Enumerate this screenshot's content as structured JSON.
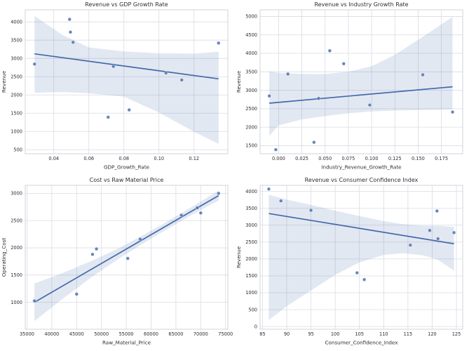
{
  "style": {
    "accent": "#4c72b0",
    "line_color": "#446aab",
    "point_fill": "#4c72b0",
    "point_edge": "#ffffff",
    "band_fill": "#4c72b0",
    "band_opacity": 0.16,
    "grid_color": "#d9dce3",
    "frame_color": "#cfd3da",
    "text_color": "#2e2e2e",
    "background": "#ffffff"
  },
  "chart_data": [
    {
      "type": "scatter",
      "title": "Revenue vs GDP Growth Rate",
      "xlabel": "GDP_Growth_Rate",
      "ylabel": "Revenue",
      "xlim": [
        0.0237,
        0.1393
      ],
      "ylim": [
        390,
        4330
      ],
      "grid": true,
      "legend": "none",
      "xtick_values": [
        0.04,
        0.06,
        0.08,
        0.1,
        0.12
      ],
      "xtick_labels": [
        "0.04",
        "0.06",
        "0.08",
        "0.10",
        "0.12"
      ],
      "ytick_values": [
        500,
        1000,
        1500,
        2000,
        2500,
        3000,
        3500,
        4000
      ],
      "ytick_labels": [
        "500",
        "1000",
        "1500",
        "2000",
        "2500",
        "3000",
        "3500",
        "4000"
      ],
      "points": [
        [
          0.029,
          2845
        ],
        [
          0.049,
          4070
        ],
        [
          0.0495,
          3720
        ],
        [
          0.051,
          3440
        ],
        [
          0.071,
          1390
        ],
        [
          0.074,
          2780
        ],
        [
          0.083,
          1590
        ],
        [
          0.104,
          2600
        ],
        [
          0.113,
          2410
        ],
        [
          0.134,
          3420
        ]
      ],
      "regression_line": [
        [
          0.029,
          3125
        ],
        [
          0.134,
          2440
        ]
      ],
      "ci_band": [
        [
          0.029,
          2060,
          4160
        ],
        [
          0.045,
          2080,
          3640
        ],
        [
          0.06,
          2045,
          3300
        ],
        [
          0.08,
          1950,
          3190
        ],
        [
          0.1,
          1520,
          3140
        ],
        [
          0.12,
          990,
          3130
        ],
        [
          0.134,
          660,
          3185
        ]
      ]
    },
    {
      "type": "scatter",
      "title": "Revenue vs Industry Growth Rate",
      "xlabel": "Industry_Revenue_Growth_Rate",
      "ylabel": "Revenue",
      "xlim": [
        -0.0199,
        0.1979
      ],
      "ylim": [
        1280,
        5180
      ],
      "grid": true,
      "legend": "none",
      "xtick_values": [
        0.0,
        0.025,
        0.05,
        0.075,
        0.1,
        0.125,
        0.15,
        0.175
      ],
      "xtick_labels": [
        "0.000",
        "0.025",
        "0.050",
        "0.075",
        "0.100",
        "0.125",
        "0.150",
        "0.175"
      ],
      "ytick_values": [
        1500,
        2000,
        2500,
        3000,
        3500,
        4000,
        4500,
        5000
      ],
      "ytick_labels": [
        "1500",
        "2000",
        "2500",
        "3000",
        "3500",
        "4000",
        "4500",
        "5000"
      ],
      "points": [
        [
          -0.01,
          2845
        ],
        [
          -0.003,
          1390
        ],
        [
          0.01,
          3440
        ],
        [
          0.038,
          1590
        ],
        [
          0.043,
          2780
        ],
        [
          0.055,
          4070
        ],
        [
          0.07,
          3720
        ],
        [
          0.098,
          2600
        ],
        [
          0.155,
          3420
        ],
        [
          0.187,
          2410
        ]
      ],
      "regression_line": [
        [
          -0.01,
          2650
        ],
        [
          0.187,
          3095
        ]
      ],
      "ci_band": [
        [
          -0.01,
          1760,
          3510
        ],
        [
          0.0,
          2050,
          3470
        ],
        [
          0.025,
          2210,
          3445
        ],
        [
          0.05,
          2300,
          3440
        ],
        [
          0.075,
          2375,
          3500
        ],
        [
          0.1,
          2425,
          3650
        ],
        [
          0.125,
          2450,
          3960
        ],
        [
          0.155,
          2465,
          4450
        ],
        [
          0.187,
          2480,
          4990
        ]
      ]
    },
    {
      "type": "scatter",
      "title": "Cost vs Raw Material Price",
      "xlabel": "Raw_Material_Price",
      "ylabel": "Operating_Cost",
      "xlim": [
        34650,
        75460
      ],
      "ylim": [
        505,
        3148
      ],
      "grid": true,
      "legend": "none",
      "xtick_values": [
        35000,
        40000,
        45000,
        50000,
        55000,
        60000,
        65000,
        70000,
        75000
      ],
      "xtick_labels": [
        "35000",
        "40000",
        "45000",
        "50000",
        "55000",
        "60000",
        "65000",
        "70000",
        "75000"
      ],
      "ytick_values": [
        1000,
        1500,
        2000,
        2500,
        3000
      ],
      "ytick_labels": [
        "1000",
        "1500",
        "2000",
        "2500",
        "3000"
      ],
      "points": [
        [
          36500,
          1025
        ],
        [
          45000,
          1150
        ],
        [
          48200,
          1880
        ],
        [
          49000,
          1980
        ],
        [
          55300,
          1805
        ],
        [
          57800,
          2160
        ],
        [
          66100,
          2600
        ],
        [
          69300,
          2735
        ],
        [
          70000,
          2640
        ],
        [
          73600,
          3000
        ]
      ],
      "regression_line": [
        [
          36500,
          1000
        ],
        [
          73600,
          2960
        ]
      ],
      "ci_band": [
        [
          36500,
          655,
          1345
        ],
        [
          42000,
          1050,
          1530
        ],
        [
          48000,
          1460,
          1760
        ],
        [
          53000,
          1770,
          1970
        ],
        [
          58000,
          2060,
          2215
        ],
        [
          63000,
          2330,
          2470
        ],
        [
          68000,
          2595,
          2740
        ],
        [
          73600,
          2870,
          3050
        ]
      ]
    },
    {
      "type": "scatter",
      "title": "Revenue vs Consumer Confidence Index",
      "xlabel": "Consumer_Confidence_Index",
      "ylabel": "Revenue",
      "xlim": [
        84.5,
        126.3
      ],
      "ylim": [
        -80,
        4180
      ],
      "grid": true,
      "legend": "none",
      "xtick_values": [
        85,
        90,
        95,
        100,
        105,
        110,
        115,
        120,
        125
      ],
      "xtick_labels": [
        "85",
        "90",
        "95",
        "100",
        "105",
        "110",
        "115",
        "120",
        "125"
      ],
      "ytick_values": [
        0,
        500,
        1000,
        1500,
        2000,
        2500,
        3000,
        3500,
        4000
      ],
      "ytick_labels": [
        "0",
        "500",
        "1000",
        "1500",
        "2000",
        "2500",
        "3000",
        "3500",
        "4000"
      ],
      "points": [
        [
          86.3,
          4070
        ],
        [
          88.8,
          3720
        ],
        [
          95,
          3440
        ],
        [
          104.5,
          1590
        ],
        [
          106,
          1390
        ],
        [
          115.5,
          2410
        ],
        [
          119.5,
          2845
        ],
        [
          121,
          3420
        ],
        [
          121.2,
          2600
        ],
        [
          124.5,
          2780
        ]
      ],
      "regression_line": [
        [
          86.3,
          3345
        ],
        [
          124.5,
          2450
        ]
      ],
      "ci_band": [
        [
          86.3,
          190,
          3900
        ],
        [
          90,
          600,
          3760
        ],
        [
          95,
          1070,
          3600
        ],
        [
          100,
          1530,
          3430
        ],
        [
          105,
          1900,
          3270
        ],
        [
          110,
          2120,
          3120
        ],
        [
          114,
          2170,
          3030
        ],
        [
          118,
          2110,
          2985
        ],
        [
          121,
          1990,
          2985
        ],
        [
          124.5,
          1660,
          2950
        ]
      ]
    }
  ]
}
